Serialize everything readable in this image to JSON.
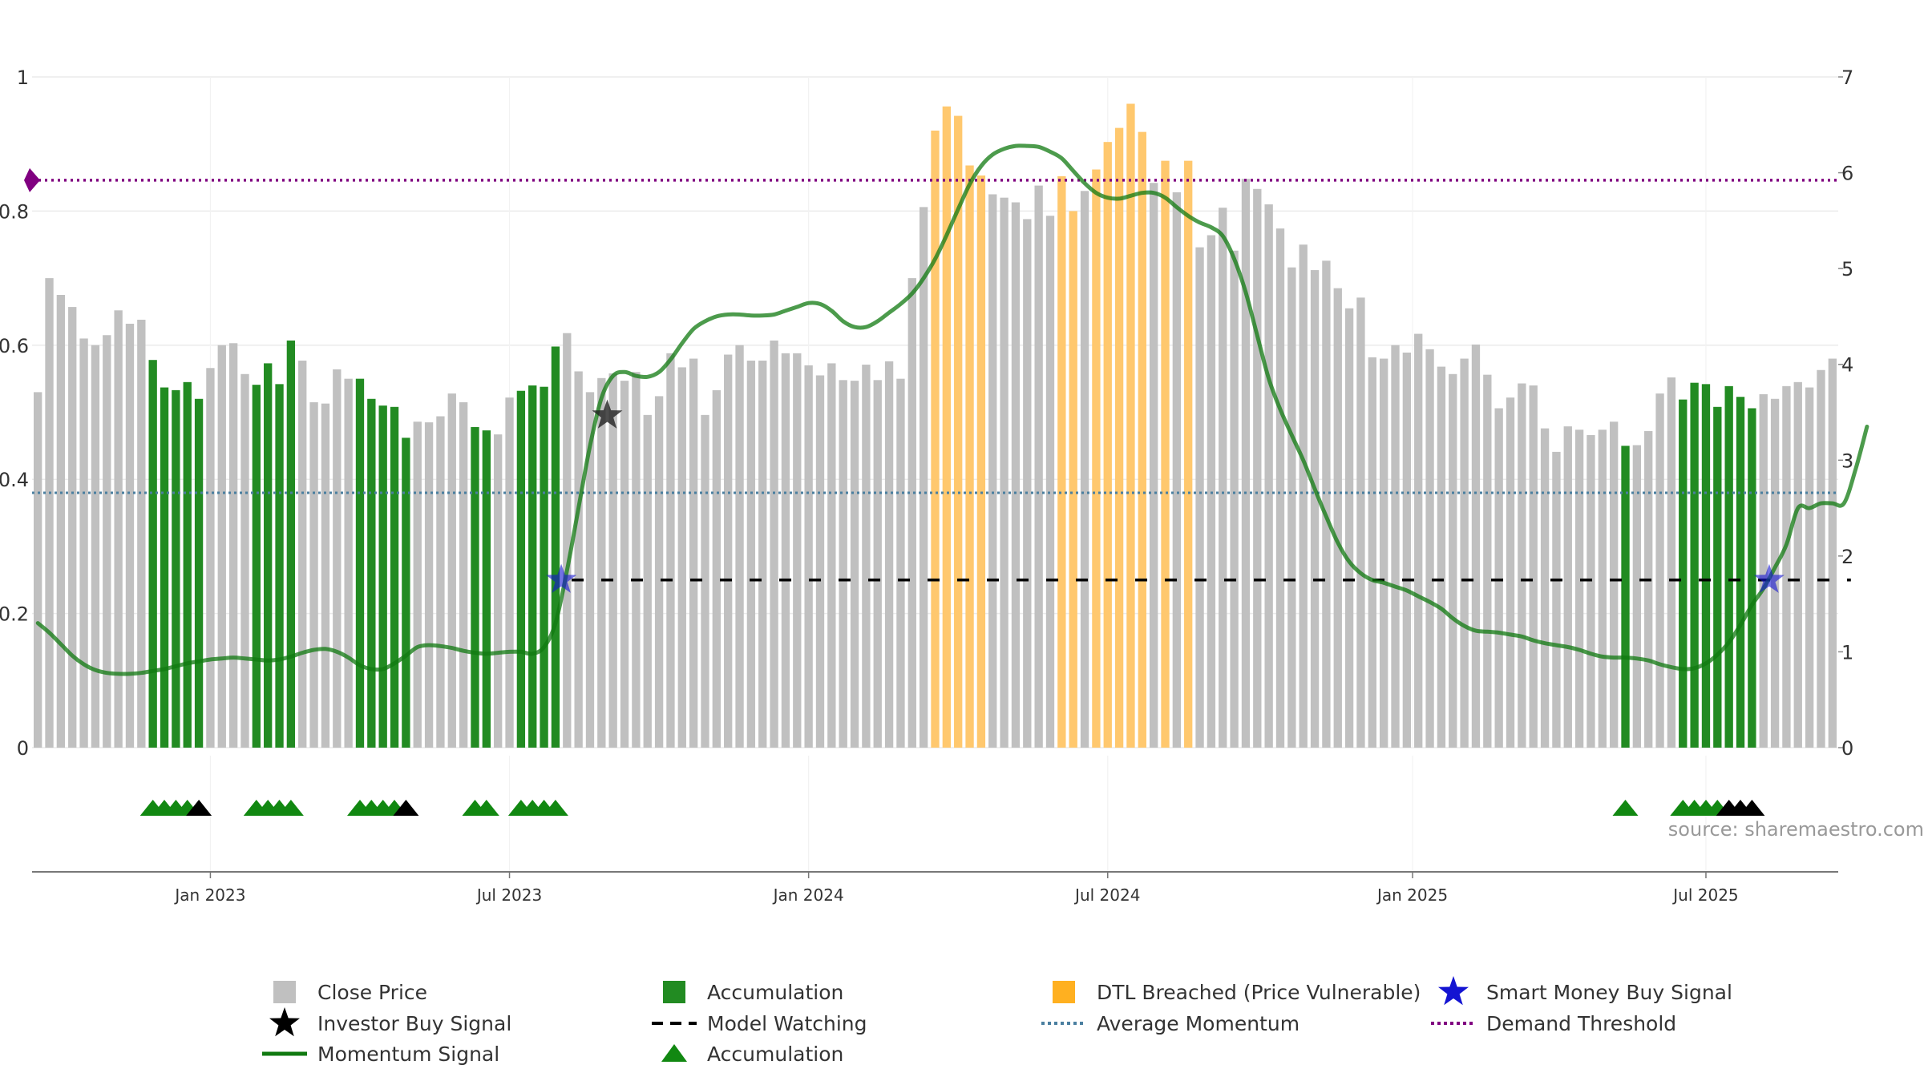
{
  "source_text": "source: sharemaestro.com",
  "chart_data": {
    "type": "bar",
    "y_left": {
      "range": [
        0,
        1
      ],
      "ticks": [
        0,
        0.2,
        0.4,
        0.6,
        0.8,
        1
      ],
      "tick_labels": [
        "0",
        "0.2",
        "0.4",
        "0.6",
        "0.8",
        "1"
      ]
    },
    "y_right": {
      "range": [
        0,
        7
      ],
      "ticks": [
        0,
        1,
        2,
        3,
        4,
        5,
        6,
        7
      ],
      "tick_labels": [
        "0",
        "1",
        "2",
        "3",
        "4",
        "5",
        "6",
        "7"
      ]
    },
    "x_ticks": [
      {
        "label": "Jan 2023",
        "bar": 15
      },
      {
        "label": "Jul 2023",
        "bar": 41
      },
      {
        "label": "Jan 2024",
        "bar": 67
      },
      {
        "label": "Jul 2024",
        "bar": 93
      },
      {
        "label": "Jan 2025",
        "bar": 119.5
      },
      {
        "label": "Jul 2025",
        "bar": 145
      }
    ],
    "grid": true,
    "legend_position": "bottom",
    "bar_values": [
      0.53,
      0.7,
      0.675,
      0.657,
      0.61,
      0.6,
      0.615,
      0.652,
      0.632,
      0.638,
      0.578,
      0.537,
      0.533,
      0.545,
      0.52,
      0.566,
      0.6,
      0.603,
      0.557,
      0.541,
      0.573,
      0.542,
      0.607,
      0.577,
      0.515,
      0.513,
      0.564,
      0.55,
      0.55,
      0.52,
      0.51,
      0.508,
      0.462,
      0.486,
      0.485,
      0.494,
      0.528,
      0.515,
      0.478,
      0.473,
      0.467,
      0.522,
      0.532,
      0.54,
      0.538,
      0.598,
      0.618,
      0.561,
      0.53,
      0.551,
      0.558,
      0.547,
      0.56,
      0.496,
      0.524,
      0.588,
      0.567,
      0.58,
      0.496,
      0.533,
      0.586,
      0.6,
      0.577,
      0.577,
      0.607,
      0.588,
      0.588,
      0.57,
      0.555,
      0.573,
      0.548,
      0.547,
      0.571,
      0.548,
      0.576,
      0.55,
      0.7,
      0.806,
      0.92,
      0.956,
      0.942,
      0.868,
      0.853,
      0.825,
      0.82,
      0.813,
      0.788,
      0.838,
      0.793,
      0.852,
      0.8,
      0.83,
      0.862,
      0.903,
      0.924,
      0.96,
      0.918,
      0.842,
      0.875,
      0.828,
      0.875,
      0.746,
      0.764,
      0.805,
      0.741,
      0.848,
      0.833,
      0.81,
      0.774,
      0.716,
      0.75,
      0.712,
      0.726,
      0.685,
      0.655,
      0.671,
      0.582,
      0.58,
      0.6,
      0.589,
      0.617,
      0.594,
      0.568,
      0.557,
      0.58,
      0.601,
      0.556,
      0.506,
      0.522,
      0.543,
      0.54,
      0.476,
      0.441,
      0.479,
      0.474,
      0.466,
      0.474,
      0.486,
      0.45,
      0.451,
      0.472,
      0.528,
      0.552,
      0.519,
      0.544,
      0.542,
      0.508,
      0.539,
      0.523,
      0.506,
      0.527,
      0.52,
      0.539,
      0.545,
      0.537,
      0.563,
      0.58
    ],
    "accumulation_bars": [
      10,
      11,
      12,
      13,
      14,
      19,
      20,
      21,
      22,
      28,
      29,
      30,
      31,
      32,
      38,
      39,
      42,
      43,
      44,
      45,
      138,
      143,
      144,
      145,
      146,
      147,
      148,
      149
    ],
    "dtl_breached_bars": [
      78,
      79,
      80,
      81,
      82,
      89,
      90,
      92,
      93,
      94,
      95,
      96,
      98,
      100
    ],
    "momentum_signal": [
      [
        0,
        1.3
      ],
      [
        1,
        1.2
      ],
      [
        2,
        1.08
      ],
      [
        3,
        0.96
      ],
      [
        4,
        0.87
      ],
      [
        5,
        0.81
      ],
      [
        6,
        0.78
      ],
      [
        7,
        0.77
      ],
      [
        8,
        0.77
      ],
      [
        9,
        0.78
      ],
      [
        10,
        0.8
      ],
      [
        11,
        0.82
      ],
      [
        12,
        0.85
      ],
      [
        13,
        0.88
      ],
      [
        14,
        0.9
      ],
      [
        15,
        0.92
      ],
      [
        16,
        0.93
      ],
      [
        17,
        0.94
      ],
      [
        18,
        0.93
      ],
      [
        19,
        0.92
      ],
      [
        20,
        0.91
      ],
      [
        21,
        0.92
      ],
      [
        22,
        0.95
      ],
      [
        23,
        0.99
      ],
      [
        24,
        1.02
      ],
      [
        25,
        1.03
      ],
      [
        26,
        1.0
      ],
      [
        27,
        0.94
      ],
      [
        28,
        0.86
      ],
      [
        29,
        0.82
      ],
      [
        30,
        0.82
      ],
      [
        31,
        0.88
      ],
      [
        32,
        0.96
      ],
      [
        33,
        1.05
      ],
      [
        34,
        1.07
      ],
      [
        35,
        1.06
      ],
      [
        36,
        1.04
      ],
      [
        37,
        1.01
      ],
      [
        38,
        0.99
      ],
      [
        39,
        0.98
      ],
      [
        40,
        0.99
      ],
      [
        41,
        1.0
      ],
      [
        42,
        1.0
      ],
      [
        43,
        0.98
      ],
      [
        44,
        1.05
      ],
      [
        45,
        1.3
      ],
      [
        46,
        1.85
      ],
      [
        47,
        2.5
      ],
      [
        48,
        3.15
      ],
      [
        49,
        3.65
      ],
      [
        50,
        3.88
      ],
      [
        51,
        3.92
      ],
      [
        52,
        3.88
      ],
      [
        53,
        3.87
      ],
      [
        54,
        3.92
      ],
      [
        55,
        4.05
      ],
      [
        56,
        4.22
      ],
      [
        57,
        4.37
      ],
      [
        58,
        4.45
      ],
      [
        59,
        4.5
      ],
      [
        60,
        4.52
      ],
      [
        61,
        4.52
      ],
      [
        62,
        4.51
      ],
      [
        63,
        4.51
      ],
      [
        64,
        4.52
      ],
      [
        65,
        4.56
      ],
      [
        66,
        4.6
      ],
      [
        67,
        4.64
      ],
      [
        68,
        4.63
      ],
      [
        69,
        4.56
      ],
      [
        70,
        4.45
      ],
      [
        71,
        4.39
      ],
      [
        72,
        4.39
      ],
      [
        73,
        4.45
      ],
      [
        74,
        4.54
      ],
      [
        75,
        4.63
      ],
      [
        76,
        4.74
      ],
      [
        77,
        4.9
      ],
      [
        78,
        5.1
      ],
      [
        79,
        5.35
      ],
      [
        80,
        5.62
      ],
      [
        81,
        5.88
      ],
      [
        82,
        6.07
      ],
      [
        83,
        6.19
      ],
      [
        84,
        6.25
      ],
      [
        85,
        6.28
      ],
      [
        86,
        6.28
      ],
      [
        87,
        6.27
      ],
      [
        88,
        6.22
      ],
      [
        89,
        6.15
      ],
      [
        90,
        6.02
      ],
      [
        91,
        5.89
      ],
      [
        92,
        5.79
      ],
      [
        93,
        5.74
      ],
      [
        94,
        5.73
      ],
      [
        95,
        5.76
      ],
      [
        96,
        5.79
      ],
      [
        97,
        5.79
      ],
      [
        98,
        5.74
      ],
      [
        99,
        5.64
      ],
      [
        100,
        5.55
      ],
      [
        101,
        5.48
      ],
      [
        102,
        5.43
      ],
      [
        103,
        5.34
      ],
      [
        104,
        5.1
      ],
      [
        105,
        4.75
      ],
      [
        106,
        4.3
      ],
      [
        107,
        3.85
      ],
      [
        108,
        3.53
      ],
      [
        109,
        3.26
      ],
      [
        110,
        3.0
      ],
      [
        111,
        2.7
      ],
      [
        112,
        2.41
      ],
      [
        113,
        2.14
      ],
      [
        114,
        1.94
      ],
      [
        115,
        1.82
      ],
      [
        116,
        1.75
      ],
      [
        117,
        1.72
      ],
      [
        118,
        1.68
      ],
      [
        119,
        1.64
      ],
      [
        120,
        1.58
      ],
      [
        121,
        1.52
      ],
      [
        122,
        1.45
      ],
      [
        123,
        1.35
      ],
      [
        124,
        1.27
      ],
      [
        125,
        1.22
      ],
      [
        126,
        1.21
      ],
      [
        127,
        1.2
      ],
      [
        128,
        1.18
      ],
      [
        129,
        1.16
      ],
      [
        130,
        1.12
      ],
      [
        131,
        1.09
      ],
      [
        132,
        1.07
      ],
      [
        133,
        1.05
      ],
      [
        134,
        1.02
      ],
      [
        135,
        0.98
      ],
      [
        136,
        0.95
      ],
      [
        137,
        0.94
      ],
      [
        138,
        0.94
      ],
      [
        139,
        0.93
      ],
      [
        140,
        0.91
      ],
      [
        141,
        0.87
      ],
      [
        142,
        0.84
      ],
      [
        143,
        0.82
      ],
      [
        144,
        0.83
      ],
      [
        145,
        0.88
      ],
      [
        146,
        0.97
      ],
      [
        147,
        1.1
      ],
      [
        148,
        1.28
      ],
      [
        149,
        1.49
      ],
      [
        150,
        1.66
      ],
      [
        151,
        1.88
      ],
      [
        152,
        2.12
      ],
      [
        153,
        2.5
      ],
      [
        154,
        2.5
      ],
      [
        155,
        2.55
      ],
      [
        156,
        2.55
      ],
      [
        157,
        2.55
      ],
      [
        158,
        2.9
      ],
      [
        159,
        3.35
      ]
    ],
    "model_watching": {
      "y": 0.25,
      "from_bar": 47,
      "to_bar": 157
    },
    "average_momentum": 0.38,
    "demand_threshold": 0.846,
    "investor_buy_signal_bars": [
      49.5
    ],
    "smart_money_buy_signal_bars": [
      45.5,
      150.5
    ],
    "accumulation_triangles": [
      {
        "bar": 10,
        "color": "green"
      },
      {
        "bar": 11,
        "color": "green"
      },
      {
        "bar": 12,
        "color": "green"
      },
      {
        "bar": 13,
        "color": "green"
      },
      {
        "bar": 14,
        "color": "black"
      },
      {
        "bar": 19,
        "color": "green"
      },
      {
        "bar": 20,
        "color": "green"
      },
      {
        "bar": 21,
        "color": "green"
      },
      {
        "bar": 22,
        "color": "green"
      },
      {
        "bar": 28,
        "color": "green"
      },
      {
        "bar": 29,
        "color": "green"
      },
      {
        "bar": 30,
        "color": "green"
      },
      {
        "bar": 31,
        "color": "green"
      },
      {
        "bar": 32,
        "color": "black"
      },
      {
        "bar": 38,
        "color": "green"
      },
      {
        "bar": 39,
        "color": "green"
      },
      {
        "bar": 42,
        "color": "green"
      },
      {
        "bar": 43,
        "color": "green"
      },
      {
        "bar": 44,
        "color": "green"
      },
      {
        "bar": 45,
        "color": "green"
      },
      {
        "bar": 138,
        "color": "green"
      },
      {
        "bar": 143,
        "color": "green"
      },
      {
        "bar": 144,
        "color": "green"
      },
      {
        "bar": 145,
        "color": "green"
      },
      {
        "bar": 146,
        "color": "green"
      },
      {
        "bar": 147,
        "color": "black"
      },
      {
        "bar": 148,
        "color": "black"
      },
      {
        "bar": 149,
        "color": "black"
      }
    ],
    "colors": {
      "close_price": "#c0c0c0",
      "accumulation": "#228b22",
      "dtl_breached": "#ffc86e",
      "momentum": "#107a10",
      "model_watching": "#000000",
      "average_momentum": "#4a7fa0",
      "demand_threshold": "#800080",
      "smart_money": "#1414d2",
      "investor_buy": "#222222",
      "triangle_green": "#118811",
      "triangle_black": "#000000"
    },
    "legend": [
      {
        "label": "Close Price",
        "marker": "gray-square"
      },
      {
        "label": "Accumulation",
        "marker": "green-square"
      },
      {
        "label": "DTL Breached (Price Vulnerable)",
        "marker": "orange-square"
      },
      {
        "label": "Smart Money Buy Signal",
        "marker": "blue-star"
      },
      {
        "label": "Investor Buy Signal",
        "marker": "black-star"
      },
      {
        "label": "Model Watching",
        "marker": "black-dash"
      },
      {
        "label": "Average Momentum",
        "marker": "blue-dotted"
      },
      {
        "label": "Demand Threshold",
        "marker": "purple-dotted"
      },
      {
        "label": "Momentum Signal",
        "marker": "green-line"
      },
      {
        "label": "Accumulation",
        "marker": "green-triangle"
      }
    ]
  }
}
